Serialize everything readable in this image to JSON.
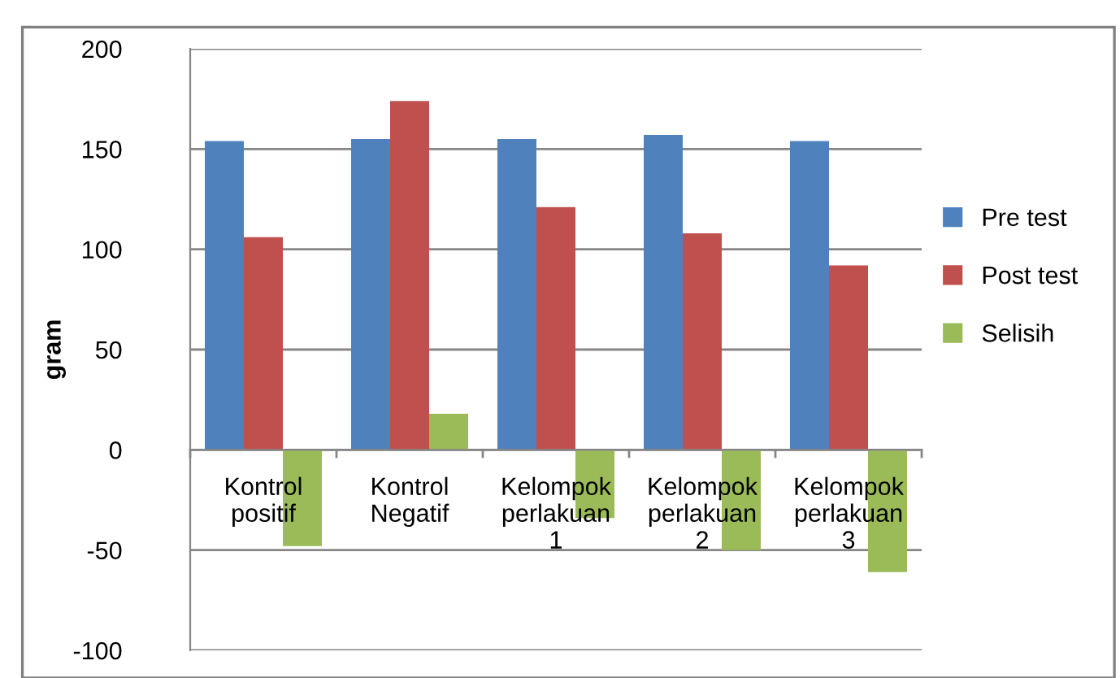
{
  "chart_data": {
    "type": "bar",
    "ylabel": "gram",
    "categories": [
      "Kontrol positif",
      "Kontrol Negatif",
      "Kelompok perlakuan 1",
      "Kelompok perlakuan 2",
      "Kelompok perlakuan 3"
    ],
    "series": [
      {
        "name": "Pre test",
        "color": "#4f81bd",
        "values": [
          154,
          155,
          155,
          157,
          154
        ]
      },
      {
        "name": "Post test",
        "color": "#c0504d",
        "values": [
          106,
          174,
          121,
          108,
          92
        ]
      },
      {
        "name": "Selisih",
        "color": "#9bbb59",
        "values": [
          -48,
          18,
          -34,
          -50,
          -61
        ]
      }
    ],
    "ylim": [
      -100,
      200
    ],
    "yticks": [
      -100,
      -50,
      0,
      50,
      100,
      150,
      200
    ],
    "grid": "y",
    "legend": "right"
  }
}
